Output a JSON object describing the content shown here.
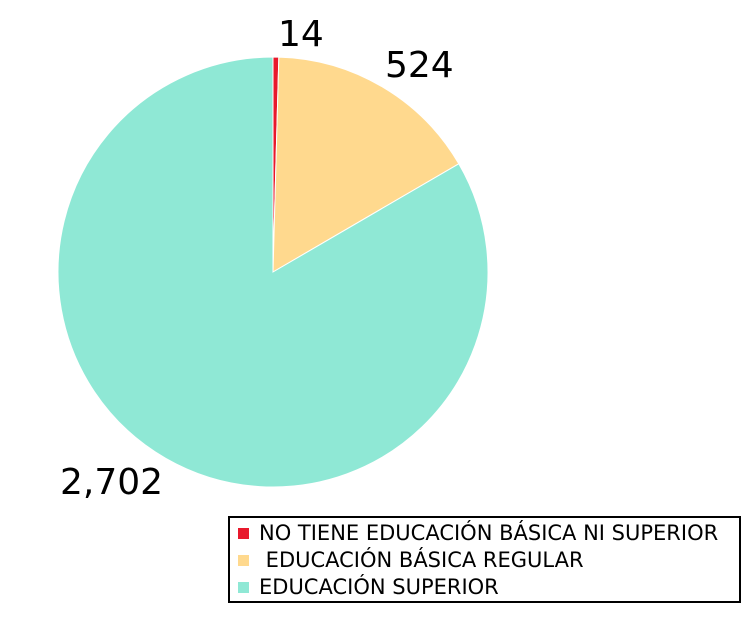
{
  "chart_data": {
    "type": "pie",
    "slices": [
      {
        "label": "NO TIENE EDUCACIÓN BÁSICA NI SUPERIOR",
        "value": 14,
        "value_label": "14",
        "color": "#e8192c"
      },
      {
        "label": " EDUCACIÓN BÁSICA REGULAR",
        "value": 524,
        "value_label": "524",
        "color": "#ffd98e"
      },
      {
        "label": "EDUCACIÓN SUPERIOR",
        "value": 2702,
        "value_label": "2,702",
        "color": "#8fe8d5"
      }
    ],
    "legend_position": "bottom-right"
  }
}
